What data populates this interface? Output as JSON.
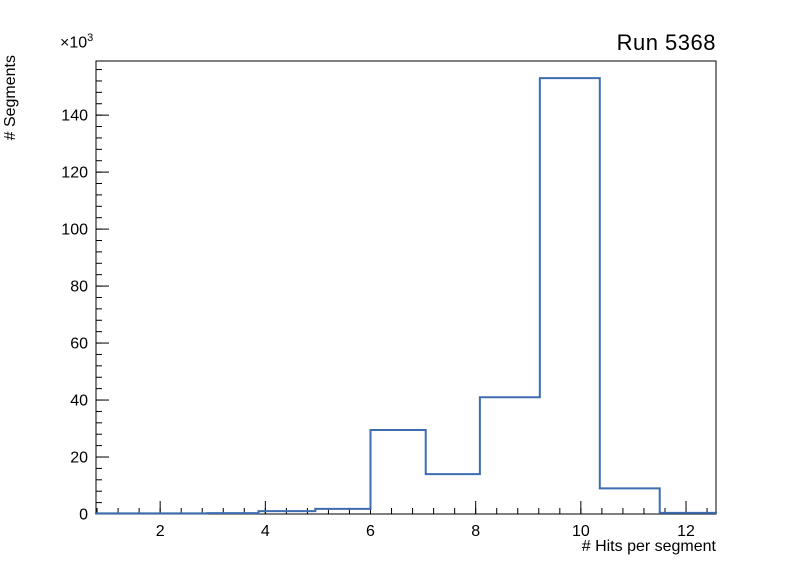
{
  "chart_data": {
    "type": "line",
    "subtype": "histogram-step",
    "title": "Run 5368",
    "xlabel": "# Hits per segment",
    "ylabel": "# Segments",
    "y_scale_label": {
      "prefix": "×10",
      "exponent": "3"
    },
    "xlim": [
      0.78,
      12.57
    ],
    "ylim": [
      0,
      159
    ],
    "x_ticks": [
      2,
      4,
      6,
      8,
      10,
      12
    ],
    "x_minor_step": 0.4,
    "y_ticks": [
      0,
      20,
      40,
      60,
      80,
      100,
      120,
      140
    ],
    "y_minor_step": 4,
    "grid": false,
    "legend": "none",
    "line_color": "#3e6cb1",
    "frame_color": "#000000",
    "units_note": "counts are in thousands (×10³)",
    "bin_edges": [
      0.78,
      1.85,
      2.9,
      3.87,
      4.95,
      6.0,
      7.05,
      8.08,
      9.22,
      10.36,
      11.5,
      12.57
    ],
    "counts_k": [
      0.2,
      0.2,
      0.3,
      1.0,
      1.8,
      29.5,
      14,
      41,
      153,
      9,
      0.4
    ]
  }
}
